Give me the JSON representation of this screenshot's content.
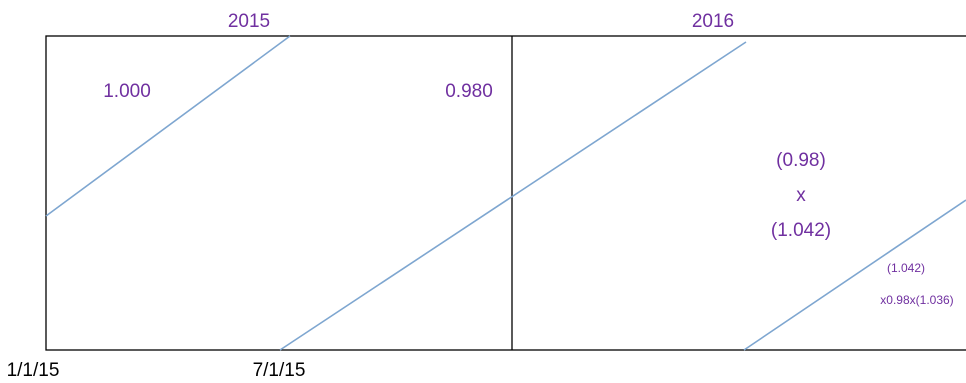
{
  "years": {
    "first": "2015",
    "second": "2016"
  },
  "factors": {
    "start": "1.000",
    "mid": "0.980",
    "product_line1": "(0.98)",
    "product_op": "x",
    "product_line2": "(1.042)",
    "small_line1": "(1.042)",
    "small_line2": "x0.98x(1.036)"
  },
  "dates": {
    "start": "1/1/15",
    "mid": "7/1/15"
  },
  "colors": {
    "label": "#7030a0",
    "diagonal": "#7ea6d0",
    "frame": "#000000"
  }
}
